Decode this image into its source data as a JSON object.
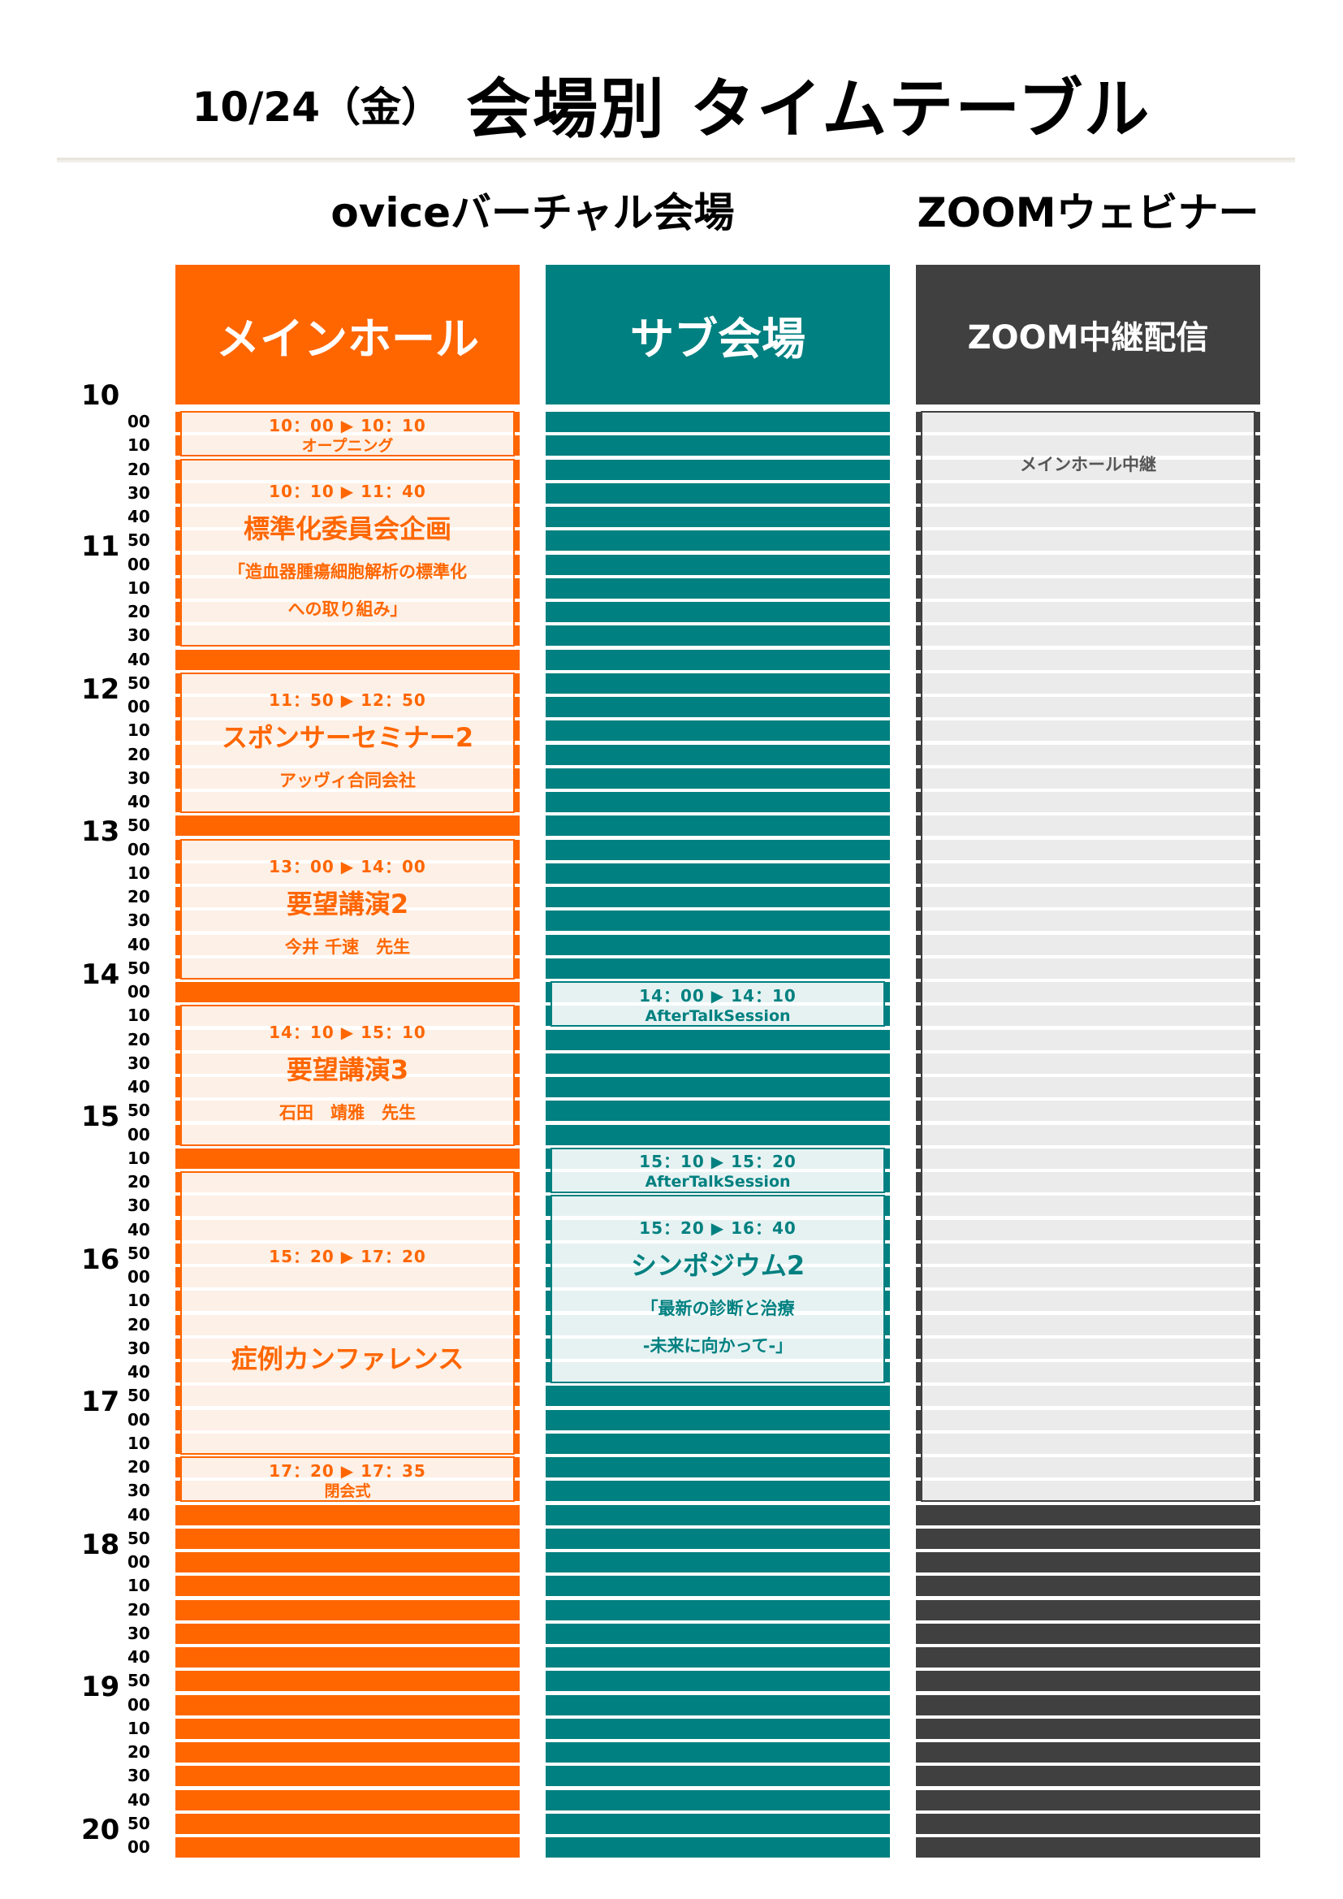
{
  "header": {
    "date": "10/24（金）",
    "title": "会場別 タイムテーブル"
  },
  "venues": {
    "ovice": "oviceバーチャル会場",
    "zoom": "ZOOMウェビナー"
  },
  "colors": {
    "main": "#FF6600",
    "main_light": "#FDF0E6",
    "sub": "#008080",
    "sub_light": "#E6F2F2",
    "zoom": "#404040",
    "zoom_light": "#EBEBEB",
    "zoom_text": "#555555"
  },
  "hours": [
    "10",
    "11",
    "12",
    "13",
    "14",
    "15",
    "16",
    "17",
    "18",
    "19",
    "20"
  ],
  "minutes": [
    "00",
    "10",
    "20",
    "30",
    "40",
    "50",
    "00",
    "10",
    "20",
    "30",
    "40",
    "50",
    "00",
    "10",
    "20",
    "30",
    "40",
    "50",
    "00",
    "10",
    "20",
    "30",
    "40",
    "50",
    "00",
    "10",
    "20",
    "30",
    "40",
    "50",
    "00",
    "10",
    "20",
    "30",
    "40",
    "50",
    "00",
    "10",
    "20",
    "30",
    "40",
    "50",
    "00",
    "10",
    "20",
    "30",
    "40",
    "50",
    "00",
    "10",
    "20",
    "30",
    "40",
    "50",
    "00",
    "10",
    "20",
    "30",
    "40",
    "50",
    "00"
  ],
  "columns": [
    {
      "key": "main",
      "label": "メインホール",
      "events": [
        {
          "lines": [
            {
              "t": "time",
              "v": "10：00 ▶ 10：10"
            },
            {
              "t": "small",
              "v": "オープニング"
            }
          ]
        },
        {
          "lines": [
            {
              "t": "time",
              "v": "10：10 ▶ 11：40"
            },
            {
              "t": "title",
              "v": "標準化委員会企画"
            },
            {
              "t": "sub",
              "v": "「造血器腫瘍細胞解析の標準化"
            },
            {
              "t": "sub",
              "v": "への取り組み」"
            }
          ]
        },
        {
          "lines": [
            {
              "t": "time",
              "v": "11：50 ▶ 12：50"
            },
            {
              "t": "title",
              "v": "スポンサーセミナー2"
            },
            {
              "t": "sub",
              "v": "アッヴィ合同会社"
            }
          ]
        },
        {
          "lines": [
            {
              "t": "time",
              "v": "13：00 ▶ 14：00"
            },
            {
              "t": "title",
              "v": "要望講演2"
            },
            {
              "t": "sub",
              "v": "今井 千速　先生"
            }
          ]
        },
        {
          "lines": [
            {
              "t": "time",
              "v": "14：10 ▶ 15：10"
            },
            {
              "t": "title",
              "v": "要望講演3"
            },
            {
              "t": "sub",
              "v": "石田　靖雅　先生"
            }
          ]
        },
        {
          "lines": [
            {
              "t": "time",
              "v": "15：20 ▶ 17：20"
            },
            {
              "t": "gap",
              "v": ""
            },
            {
              "t": "title",
              "v": "症例カンファレンス"
            }
          ]
        },
        {
          "lines": [
            {
              "t": "time",
              "v": "17：20 ▶ 17：35"
            },
            {
              "t": "small",
              "v": "閉会式"
            }
          ]
        }
      ]
    },
    {
      "key": "sub",
      "label": "サブ会場",
      "events": [
        {
          "lines": [
            {
              "t": "time",
              "v": "14：00 ▶ 14：10"
            },
            {
              "t": "small",
              "v": "AfterTalkSession"
            }
          ]
        },
        {
          "lines": [
            {
              "t": "time",
              "v": "15：10 ▶ 15：20"
            },
            {
              "t": "small",
              "v": "AfterTalkSession"
            }
          ]
        },
        {
          "lines": [
            {
              "t": "time",
              "v": "15：20 ▶ 16：40"
            },
            {
              "t": "title",
              "v": "シンポジウム2"
            },
            {
              "t": "sub",
              "v": "「最新の診断と治療"
            },
            {
              "t": "sub",
              "v": "-未来に向かって-」"
            }
          ]
        }
      ]
    },
    {
      "key": "zoom",
      "label": "ZOOM中継配信",
      "events": [
        {
          "lines": [
            {
              "t": "sub",
              "v": "メインホール中継"
            }
          ]
        }
      ]
    }
  ]
}
